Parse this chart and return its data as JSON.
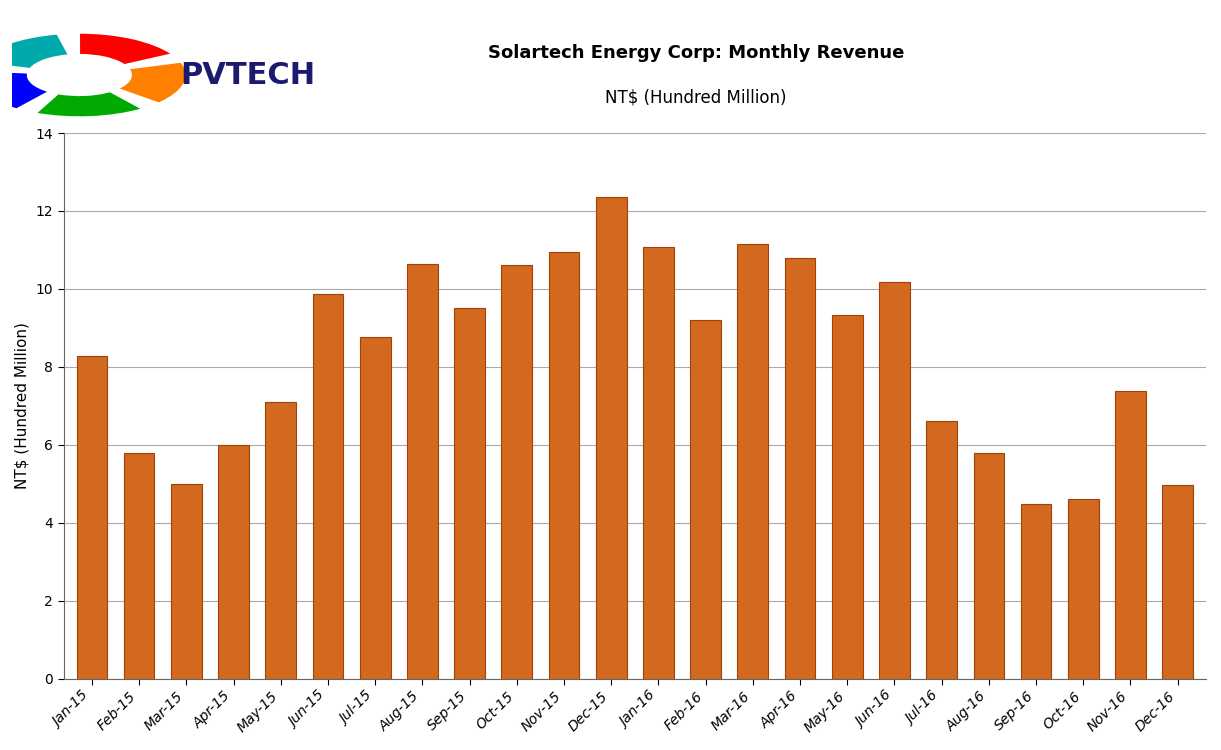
{
  "title_line1": "Solartech Energy Corp: Monthly Revenue",
  "title_line2": "NT$ (Hundred Million)",
  "ylabel": "NT$ (Hundred Million)",
  "bar_color": "#D2691E",
  "bar_edge_color": "#A0420A",
  "background_color": "#FFFFFF",
  "ylim": [
    0,
    14
  ],
  "yticks": [
    0,
    2,
    4,
    6,
    8,
    10,
    12,
    14
  ],
  "categories": [
    "Jan-15",
    "Feb-15",
    "Mar-15",
    "Apr-15",
    "May-15",
    "Jun-15",
    "Jul-15",
    "Aug-15",
    "Sep-15",
    "Oct-15",
    "Nov-15",
    "Dec-15",
    "Jan-16",
    "Feb-16",
    "Mar-16",
    "Apr-16",
    "May-16",
    "Jun-16",
    "Jul-16",
    "Aug-16",
    "Sep-16",
    "Oct-16",
    "Nov-16",
    "Dec-16"
  ],
  "values": [
    8.28,
    5.8,
    5.0,
    6.0,
    7.1,
    9.87,
    8.76,
    10.63,
    9.51,
    10.62,
    10.95,
    12.35,
    11.07,
    9.2,
    11.16,
    10.78,
    9.32,
    10.17,
    6.62,
    5.8,
    4.48,
    4.6,
    7.37,
    4.98
  ]
}
